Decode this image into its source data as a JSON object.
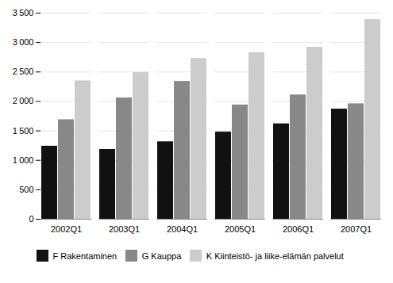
{
  "chart_data": {
    "type": "bar",
    "categories": [
      "2002Q1",
      "2003Q1",
      "2004Q1",
      "2005Q1",
      "2006Q1",
      "2007Q1"
    ],
    "series": [
      {
        "name": "F Rakentaminen",
        "color": "#111111",
        "values": [
          1240,
          1185,
          1315,
          1480,
          1620,
          1870
        ]
      },
      {
        "name": "G Kauppa",
        "color": "#888888",
        "values": [
          1690,
          2060,
          2340,
          1940,
          2110,
          1960
        ]
      },
      {
        "name": "K Kiinteistö- ja liike-elämän palvelut",
        "color": "#cccccc",
        "values": [
          2350,
          2490,
          2730,
          2830,
          2920,
          3390
        ]
      }
    ],
    "ylim": [
      0,
      3500
    ],
    "yticks": [
      0,
      500,
      {
        "value": 1000,
        "label": "1 000"
      },
      {
        "value": 1500,
        "label": "1 500"
      },
      {
        "value": 2000,
        "label": "2 000"
      },
      {
        "value": 2500,
        "label": "2 500"
      },
      {
        "value": 3000,
        "label": "3 000"
      },
      {
        "value": 3500,
        "label": "3 500"
      }
    ],
    "grid": true,
    "legend": "bottom"
  }
}
